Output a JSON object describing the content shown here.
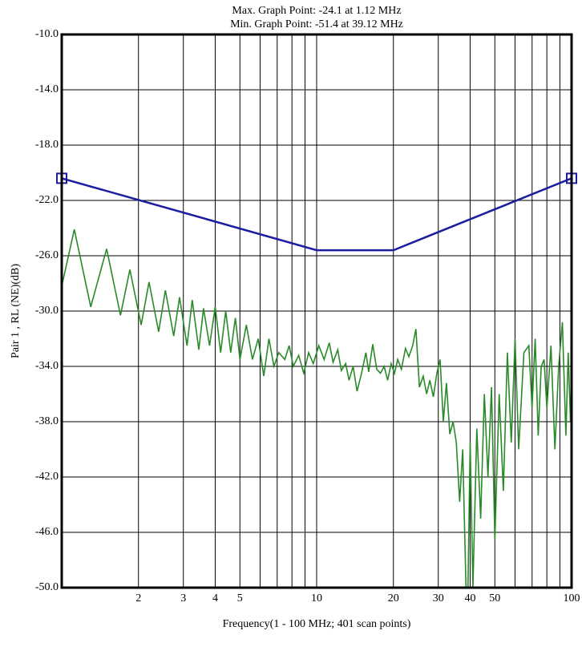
{
  "chart_data": {
    "type": "line",
    "title_lines": [
      "Max. Graph Point: -24.1 at 1.12 MHz",
      "Min. Graph Point: -51.4 at 39.12 MHz"
    ],
    "x_label": "Frequency(1 - 100 MHz; 401 scan points)",
    "y_label": "Pair 1 , RL (NE)(dB)",
    "log_x": true,
    "grid": true,
    "xlim": [
      1,
      100
    ],
    "ylim": [
      -50,
      -10
    ],
    "xticks": [
      2,
      3,
      4,
      5,
      10,
      20,
      30,
      40,
      50,
      100
    ],
    "x_minor_ticks": [
      6,
      7,
      8,
      9,
      60,
      70,
      80,
      90
    ],
    "yticks": [
      {
        "value": -50,
        "label": "-50.0"
      },
      {
        "value": -46,
        "label": "-46.0"
      },
      {
        "value": -42,
        "label": "-42.0"
      },
      {
        "value": -38,
        "label": "-38.0"
      },
      {
        "value": -34,
        "label": "-34.0"
      },
      {
        "value": -30,
        "label": "-30.0"
      },
      {
        "value": -26,
        "label": "-26.0"
      },
      {
        "value": -22,
        "label": "-22.0"
      },
      {
        "value": -18,
        "label": "-18.0"
      },
      {
        "value": -14,
        "label": "-14.0"
      },
      {
        "value": -10,
        "label": "-10.0"
      }
    ],
    "series": [
      {
        "color": "#1c1ca0",
        "markers": "square-ends",
        "x": [
          1,
          10,
          20,
          100
        ],
        "values": [
          -20.4,
          -25.6,
          -25.6,
          -20.4
        ]
      },
      {
        "color": "#2a8a2a",
        "x": [
          1,
          1.12,
          1.3,
          1.5,
          1.7,
          1.85,
          2.05,
          2.2,
          2.4,
          2.55,
          2.75,
          2.9,
          3.1,
          3.25,
          3.45,
          3.6,
          3.8,
          4.0,
          4.2,
          4.4,
          4.6,
          4.8,
          5.0,
          5.3,
          5.6,
          5.9,
          6.2,
          6.5,
          6.8,
          7.1,
          7.5,
          7.8,
          8.1,
          8.5,
          8.9,
          9.3,
          9.7,
          10.2,
          10.7,
          11.2,
          11.6,
          12.1,
          12.5,
          13,
          13.4,
          13.9,
          14.4,
          15,
          15.6,
          16,
          16.6,
          17.2,
          17.8,
          18.4,
          19,
          19.6,
          20.2,
          20.8,
          21.5,
          22.3,
          23,
          23.8,
          24.5,
          25.3,
          26.2,
          27,
          27.8,
          28.7,
          29.6,
          30.5,
          31.4,
          32.3,
          33.3,
          34.3,
          35.3,
          36.4,
          37.4,
          38.5,
          39.12,
          40,
          41,
          42.5,
          44,
          45.5,
          47,
          48.5,
          50,
          52,
          54,
          56,
          58,
          60,
          62,
          65,
          68,
          70,
          72,
          74,
          76,
          78,
          80,
          83,
          86,
          89,
          92,
          95,
          97,
          99,
          100
        ],
        "values": [
          -28.2,
          -24.1,
          -29.7,
          -25.5,
          -30.3,
          -27,
          -31,
          -27.9,
          -31.5,
          -28.5,
          -31.8,
          -29,
          -32.5,
          -29.2,
          -32.8,
          -29.8,
          -32.5,
          -29.7,
          -33,
          -30,
          -33,
          -30.5,
          -33.5,
          -31,
          -33.5,
          -32,
          -34.7,
          -32,
          -34,
          -33,
          -33.5,
          -32.5,
          -34,
          -33.2,
          -34.5,
          -33,
          -33.8,
          -32.5,
          -33.5,
          -32.3,
          -33.7,
          -32.8,
          -34.3,
          -33.8,
          -35,
          -34,
          -35.8,
          -34.5,
          -33,
          -34.4,
          -32.4,
          -34.2,
          -34.5,
          -34,
          -35,
          -33.8,
          -34.5,
          -33.5,
          -34.2,
          -32.7,
          -33.3,
          -32.5,
          -31.3,
          -35.5,
          -34.7,
          -36,
          -35,
          -36.2,
          -34.5,
          -33.5,
          -38,
          -35.2,
          -38.9,
          -38,
          -39.5,
          -43.8,
          -40,
          -49.8,
          -51.4,
          -39.5,
          -50,
          -38.5,
          -45,
          -36,
          -42,
          -35.5,
          -46.5,
          -36,
          -43,
          -33,
          -39.5,
          -32,
          -40,
          -33,
          -32.5,
          -37,
          -32,
          -39,
          -34,
          -33.5,
          -37,
          -32.5,
          -40,
          -34,
          -30.8,
          -39,
          -33,
          -38,
          -36
        ]
      }
    ]
  }
}
